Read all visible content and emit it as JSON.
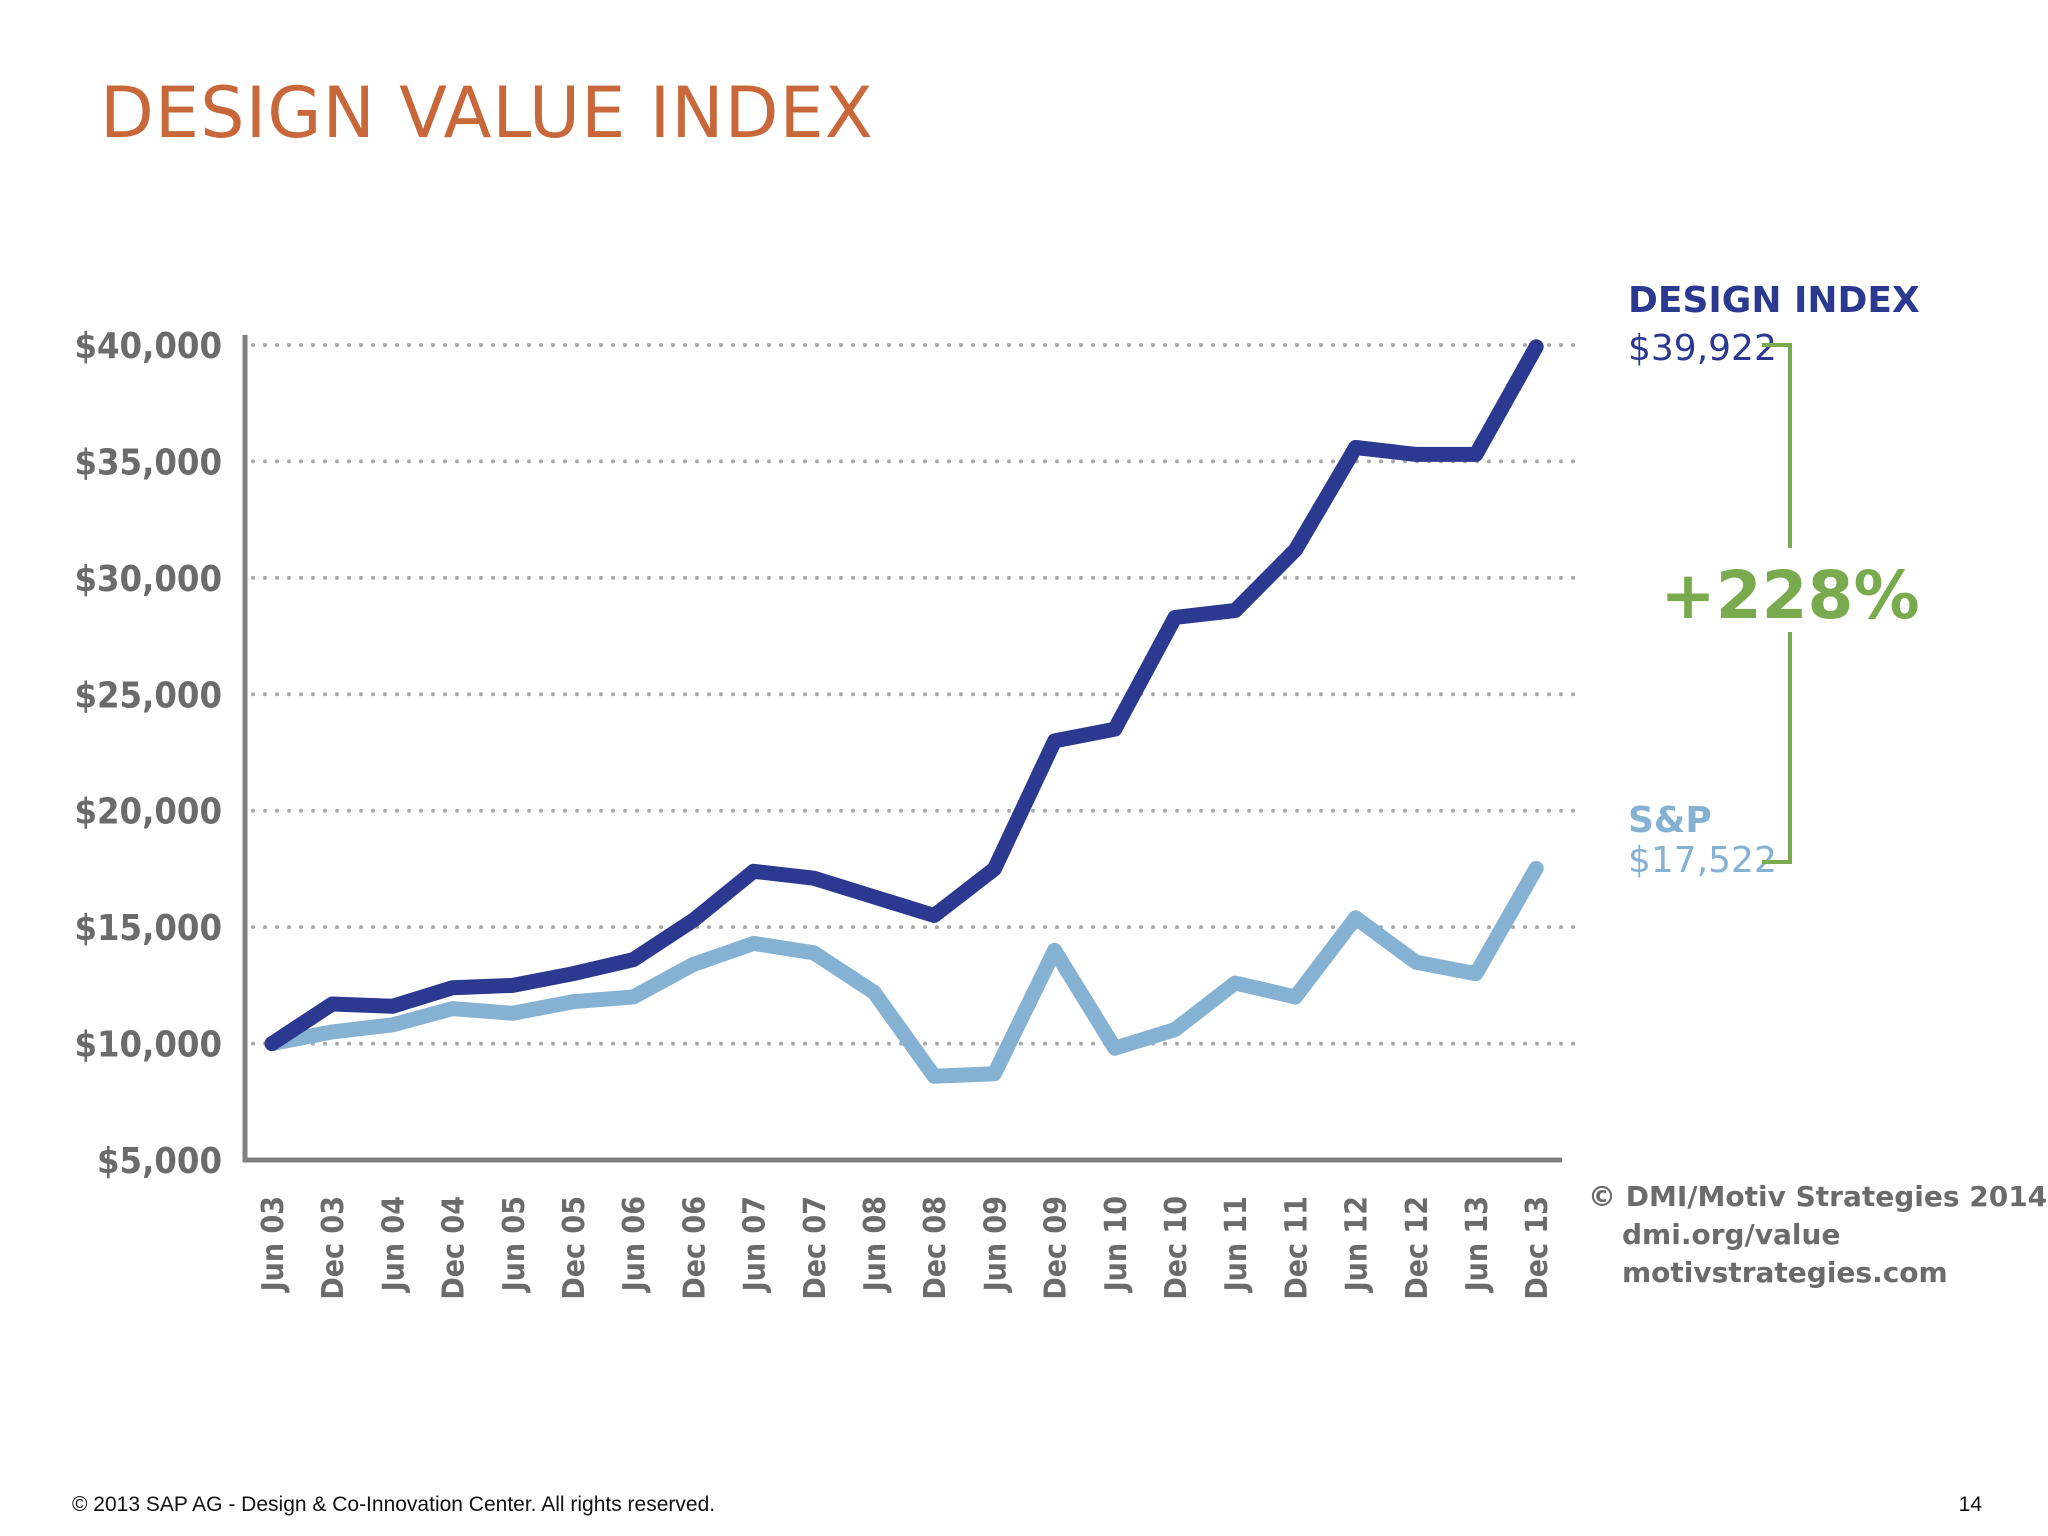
{
  "slide": {
    "title": "DESIGN VALUE INDEX",
    "footer": "©  2013 SAP AG - Design & Co-Innovation Center. All rights reserved.",
    "page_number": "14"
  },
  "chart_data": {
    "type": "line",
    "title": "",
    "xlabel": "",
    "ylabel": "",
    "ylim": [
      5000,
      40000
    ],
    "yticks": [
      5000,
      10000,
      15000,
      20000,
      25000,
      30000,
      35000,
      40000
    ],
    "ytick_labels": [
      "$5,000",
      "$10,000",
      "$15,000",
      "$20,000",
      "$25,000",
      "$30,000",
      "$35,000",
      "$40,000"
    ],
    "grid": "horizontal-dotted",
    "categories": [
      "Jun 03",
      "Dec 03",
      "Jun 04",
      "Dec 04",
      "Jun 05",
      "Dec 05",
      "Jun 06",
      "Dec 06",
      "Jun 07",
      "Dec 07",
      "Jun 08",
      "Dec 08",
      "Jun 09",
      "Dec 09",
      "Jun 10",
      "Dec 10",
      "Jun 11",
      "Dec 11",
      "Jun 12",
      "Dec 12",
      "Jun 13",
      "Dec 13"
    ],
    "series": [
      {
        "name": "DESIGN INDEX",
        "color": "#2b3990",
        "end_label": "$39,922",
        "values": [
          10000,
          11700,
          11600,
          12400,
          12500,
          13000,
          13600,
          15300,
          17400,
          17100,
          16300,
          15500,
          17500,
          23000,
          23500,
          28300,
          28600,
          31200,
          35600,
          35300,
          35300,
          39922
        ]
      },
      {
        "name": "S&P",
        "color": "#85b2d3",
        "end_label": "$17,522",
        "values": [
          10000,
          10500,
          10800,
          11500,
          11300,
          11800,
          12000,
          13400,
          14300,
          13900,
          12200,
          8600,
          8700,
          14000,
          9800,
          10600,
          12600,
          12000,
          15400,
          13500,
          13000,
          17522
        ]
      }
    ],
    "annotation": {
      "text": "+228%",
      "color": "#7aaa4e"
    },
    "credits": [
      "© DMI/Motiv Strategies 2014",
      "dmi.org/value",
      "motivstrategies.com"
    ]
  }
}
